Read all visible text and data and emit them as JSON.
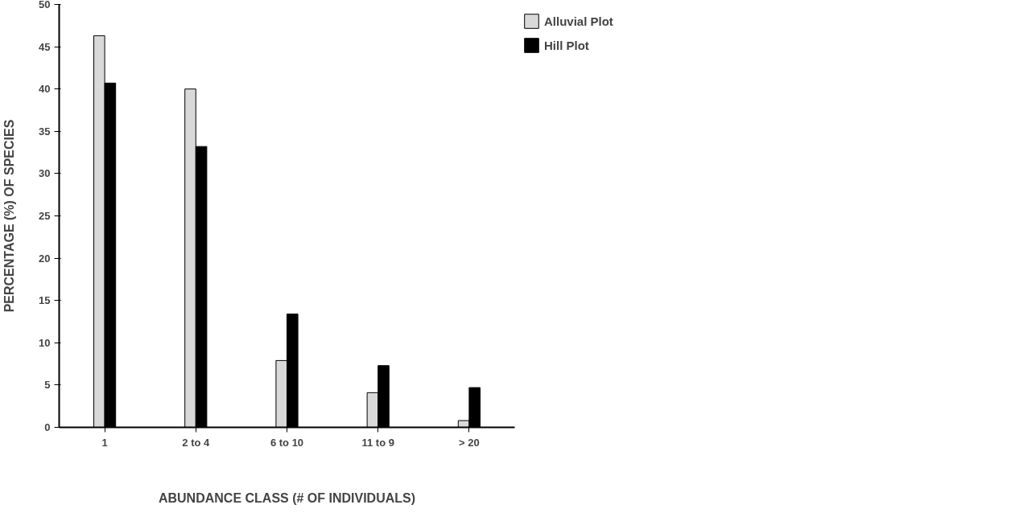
{
  "chart_data": {
    "type": "bar",
    "xlabel": "ABUNDANCE CLASS (# OF INDIVIDUALS)",
    "ylabel": "PERCENTAGE (%) OF SPECIES",
    "categories": [
      "1",
      "2 to 4",
      "6 to 10",
      "11 to 9",
      "> 20"
    ],
    "series": [
      {
        "name": "Alluvial Plot",
        "color": "#d9d9d9",
        "values": [
          46.3,
          40.0,
          7.9,
          4.1,
          0.8
        ]
      },
      {
        "name": "Hill Plot",
        "color": "#000000",
        "values": [
          40.7,
          33.2,
          13.4,
          7.3,
          4.7
        ]
      }
    ],
    "ylim": [
      0,
      50
    ],
    "yticks": [
      0,
      5,
      10,
      15,
      20,
      25,
      30,
      35,
      40,
      45,
      50
    ],
    "grid": false,
    "legend": "top right"
  }
}
